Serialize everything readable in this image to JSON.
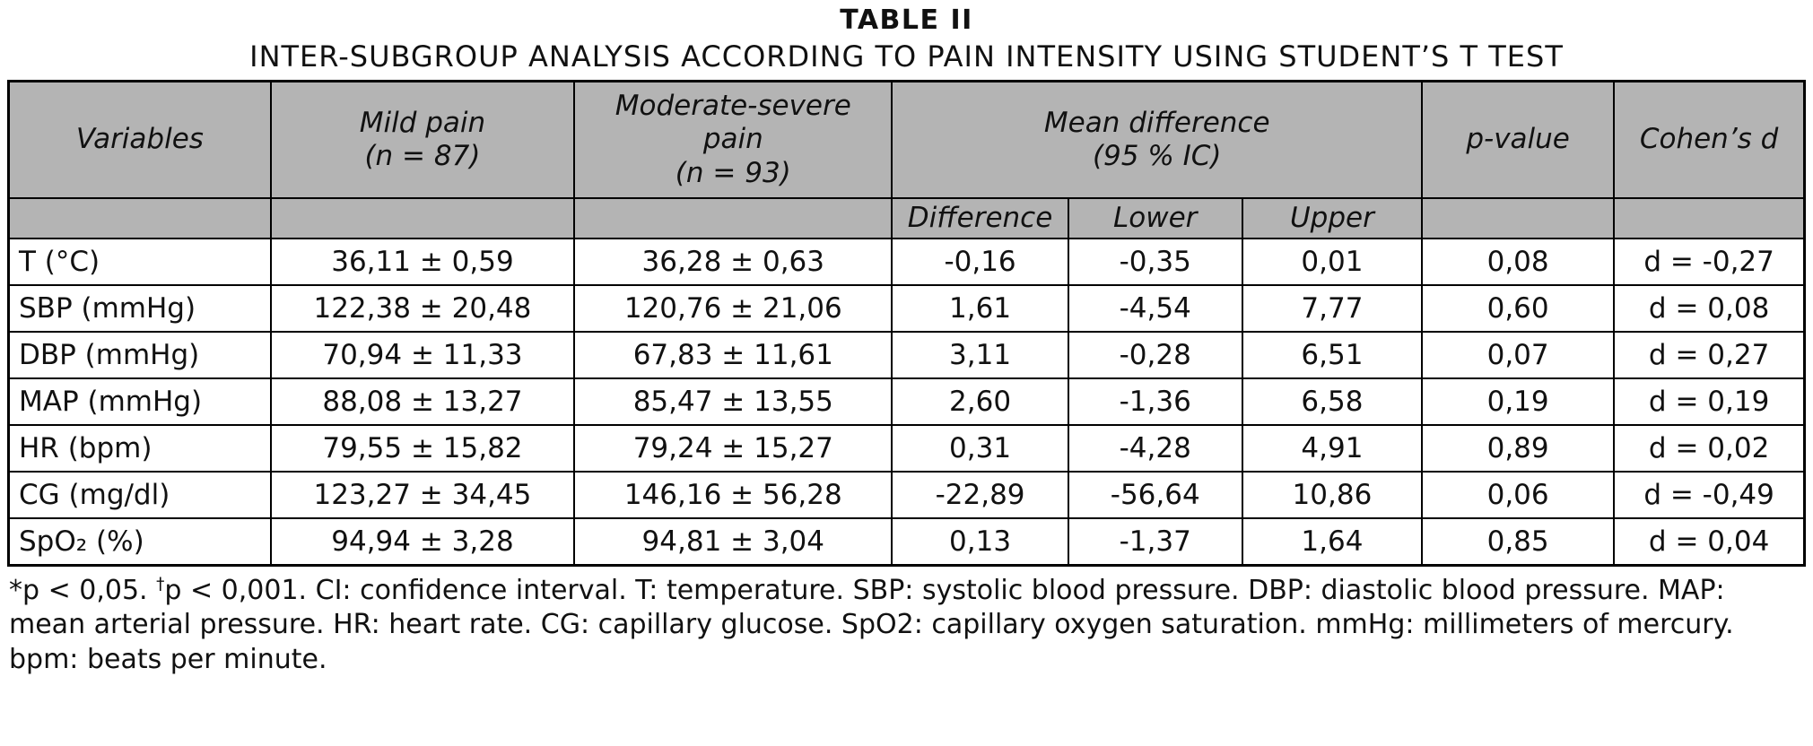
{
  "title": "TABLE II",
  "subtitle": "INTER-SUBGROUP ANALYSIS ACCORDING TO PAIN INTENSITY USING STUDENT’S T TEST",
  "colors": {
    "header_bg": "#b4b4b4",
    "border": "#000000",
    "background": "#ffffff"
  },
  "table": {
    "headers": {
      "variables": "Variables",
      "mild_pain": "Mild pain\n(n = 87)",
      "moderate_severe_pain": "Moderate-severe\npain\n(n = 93)",
      "mean_difference": "Mean difference\n(95 % IC)",
      "p_value": "p-value",
      "cohens_d": "Cohen’s d",
      "difference": "Difference",
      "lower": "Lower",
      "upper": "Upper"
    },
    "rows": [
      {
        "variable": "T (°C)",
        "mild": "36,11 ± 0,59",
        "moderate": "36,28 ± 0,63",
        "difference": "-0,16",
        "lower": "-0,35",
        "upper": "0,01",
        "p_value": "0,08",
        "cohens_d": "d = -0,27"
      },
      {
        "variable": "SBP (mmHg)",
        "mild": "122,38 ± 20,48",
        "moderate": "120,76 ± 21,06",
        "difference": "1,61",
        "lower": "-4,54",
        "upper": "7,77",
        "p_value": "0,60",
        "cohens_d": "d = 0,08"
      },
      {
        "variable": "DBP (mmHg)",
        "mild": "70,94 ± 11,33",
        "moderate": "67,83 ± 11,61",
        "difference": "3,11",
        "lower": "-0,28",
        "upper": "6,51",
        "p_value": "0,07",
        "cohens_d": "d = 0,27"
      },
      {
        "variable": "MAP (mmHg)",
        "mild": "88,08 ± 13,27",
        "moderate": "85,47 ± 13,55",
        "difference": "2,60",
        "lower": "-1,36",
        "upper": "6,58",
        "p_value": "0,19",
        "cohens_d": "d = 0,19"
      },
      {
        "variable": "HR (bpm)",
        "mild": "79,55 ± 15,82",
        "moderate": "79,24 ± 15,27",
        "difference": "0,31",
        "lower": "-4,28",
        "upper": "4,91",
        "p_value": "0,89",
        "cohens_d": "d = 0,02"
      },
      {
        "variable": "CG (mg/dl)",
        "mild": "123,27 ± 34,45",
        "moderate": "146,16 ± 56,28",
        "difference": "-22,89",
        "lower": "-56,64",
        "upper": "10,86",
        "p_value": "0,06",
        "cohens_d": "d = -0,49"
      },
      {
        "variable": "SpO₂ (%)",
        "mild": "94,94 ± 3,28",
        "moderate": "94,81 ± 3,04",
        "difference": "0,13",
        "lower": "-1,37",
        "upper": "1,64",
        "p_value": "0,85",
        "cohens_d": "d = 0,04"
      }
    ]
  },
  "footnote": {
    "part1": "*p < 0,05. ",
    "dagger": "†",
    "part2": "p < 0,001. CI: confidence interval. T: temperature. SBP: systolic blood pressure. DBP: diastolic blood pressure. MAP: mean arterial pressure. HR: heart rate. CG: capillary glucose. SpO2: capillary oxygen saturation. mmHg: millimeters of mercury. bpm: beats per minute."
  }
}
